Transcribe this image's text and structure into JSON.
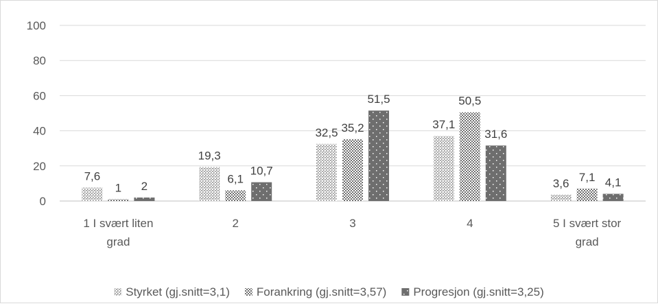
{
  "chart_data": {
    "type": "bar",
    "categories": [
      [
        "1 I svært liten",
        "grad"
      ],
      [
        "2"
      ],
      [
        "3"
      ],
      [
        "4"
      ],
      [
        "5 I svært stor",
        "grad"
      ]
    ],
    "series": [
      {
        "name": "Styrket (gj.snitt=3,1)",
        "values": [
          7.6,
          19.3,
          32.5,
          37.1,
          3.6
        ],
        "labels": [
          "7,6",
          "19,3",
          "32,5",
          "37,1",
          "3,6"
        ],
        "pattern": "dots"
      },
      {
        "name": "Forankring (gj.snitt=3,57)",
        "values": [
          1,
          6.1,
          35.2,
          50.5,
          7.1
        ],
        "labels": [
          "1",
          "6,1",
          "35,2",
          "50,5",
          "7,1"
        ],
        "pattern": "checker"
      },
      {
        "name": "Progresjon (gj.snitt=3,25)",
        "values": [
          2,
          10.7,
          51.5,
          31.6,
          4.1
        ],
        "labels": [
          "2",
          "10,7",
          "51,5",
          "31,6",
          "4,1"
        ],
        "pattern": "sparse"
      }
    ],
    "y_ticks": [
      "0",
      "20",
      "40",
      "60",
      "80",
      "100"
    ],
    "ylim": [
      0,
      100
    ],
    "grid": true,
    "legend_position": "bottom",
    "colors": {
      "bar": "#707070",
      "grid": "#d9d9d9",
      "text": "#595959"
    }
  }
}
